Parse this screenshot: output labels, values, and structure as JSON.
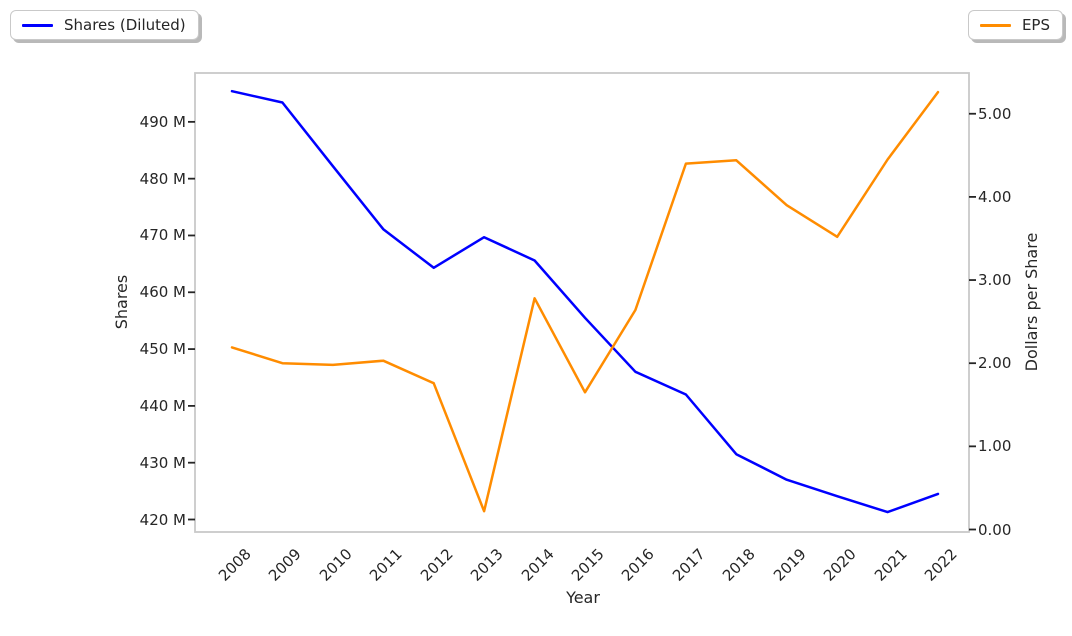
{
  "legend": {
    "left": {
      "label": "Shares (Diluted)"
    },
    "right": {
      "label": "EPS"
    }
  },
  "chart_data": {
    "type": "line",
    "title": "",
    "x_label": "Year",
    "categories": [
      "2008",
      "2009",
      "2010",
      "2011",
      "2012",
      "2013",
      "2014",
      "2015",
      "2016",
      "2017",
      "2018",
      "2019",
      "2020",
      "2021",
      "2022"
    ],
    "series": [
      {
        "name": "Shares (Diluted)",
        "axis": "left",
        "color": "#0000ff",
        "unit": "millions of shares",
        "values": [
          495.4,
          493.4,
          482.2,
          471.1,
          464.3,
          469.7,
          465.6,
          455.5,
          446.0,
          442.0,
          431.5,
          427.0,
          424.1,
          421.3,
          424.5
        ]
      },
      {
        "name": "EPS",
        "axis": "right",
        "color": "#ff8c00",
        "unit": "dollars per share",
        "values": [
          2.19,
          2.0,
          1.98,
          2.03,
          1.76,
          0.22,
          2.78,
          1.65,
          2.64,
          4.4,
          4.44,
          3.9,
          3.52,
          4.45,
          5.26
        ]
      }
    ],
    "left_axis": {
      "label": "Shares",
      "tick_values": [
        420,
        430,
        440,
        450,
        460,
        470,
        480,
        490
      ],
      "tick_labels": [
        "420 M",
        "430 M",
        "440 M",
        "450 M",
        "460 M",
        "470 M",
        "480 M",
        "490 M"
      ],
      "min": 417.8,
      "max": 498.6
    },
    "right_axis": {
      "label": "Dollars per Share",
      "tick_values": [
        0,
        1,
        2,
        3,
        4,
        5
      ],
      "tick_labels": [
        "0.00",
        "1.00",
        "2.00",
        "3.00",
        "4.00",
        "5.00"
      ],
      "min": -0.03,
      "max": 5.49
    },
    "legend_position": [
      "upper left (outside)",
      "upper right (outside)"
    ],
    "grid": false,
    "spine_color": "#c9c9c9",
    "tick_color": "#262626"
  }
}
